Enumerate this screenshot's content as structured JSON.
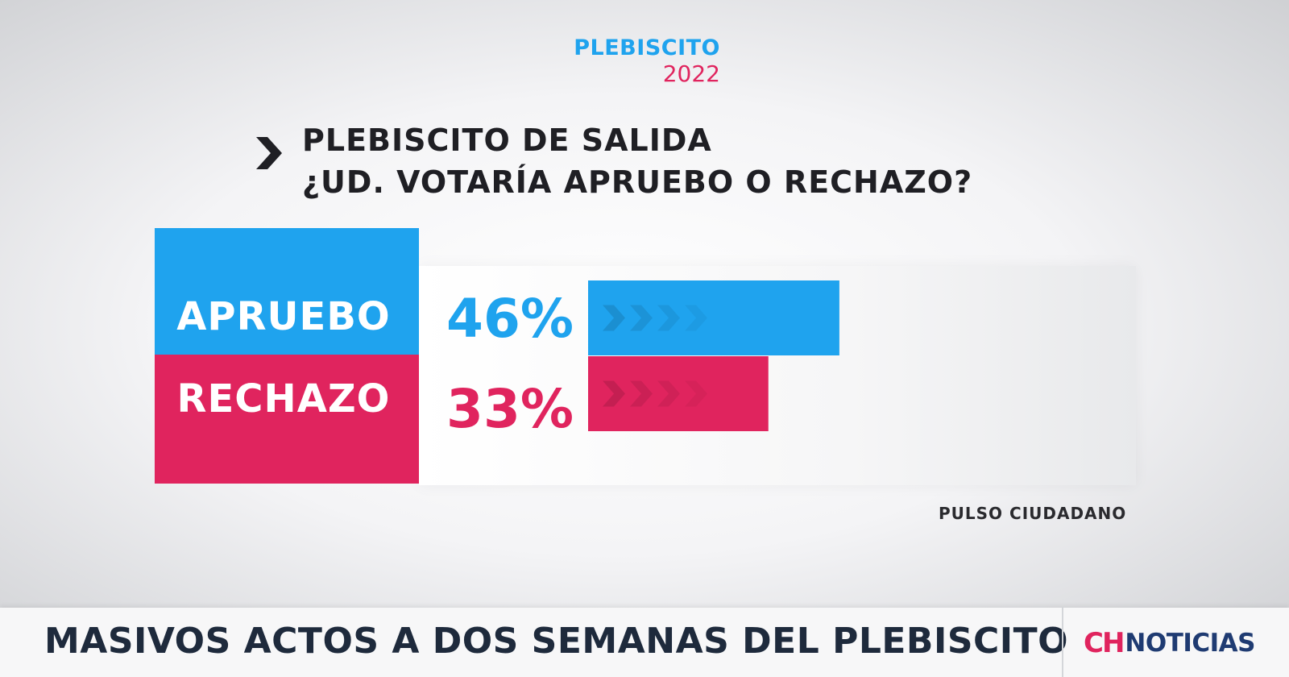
{
  "header": {
    "brand_line1": "PLEBISCITO",
    "brand_line2": "2022"
  },
  "question": {
    "line1": "PLEBISCITO DE SALIDA",
    "line2": "¿UD. VOTARÍA APRUEBO O RECHAZO?"
  },
  "colors": {
    "apruebo": "#1fa3ee",
    "rechazo": "#e0245e",
    "text_dark": "#1f1f24"
  },
  "chart_data": {
    "type": "bar",
    "orientation": "horizontal",
    "categories": [
      "APRUEBO",
      "RECHAZO"
    ],
    "values": [
      46,
      33
    ],
    "value_labels": [
      "46%",
      "33%"
    ],
    "colors": [
      "#1fa3ee",
      "#e0245e"
    ],
    "xlim": [
      0,
      100
    ],
    "grid": false,
    "legend": "none"
  },
  "source": "PULSO CIUDADANO",
  "ticker": {
    "headline": "MASIVOS ACTOS A DOS SEMANAS DEL PLEBISCITO",
    "logo_mark": "CH",
    "logo_word": "NOTICIAS"
  },
  "icons": {
    "question_marker": "chevron-right-icon",
    "bar_decoration": "chevrons-icon"
  }
}
